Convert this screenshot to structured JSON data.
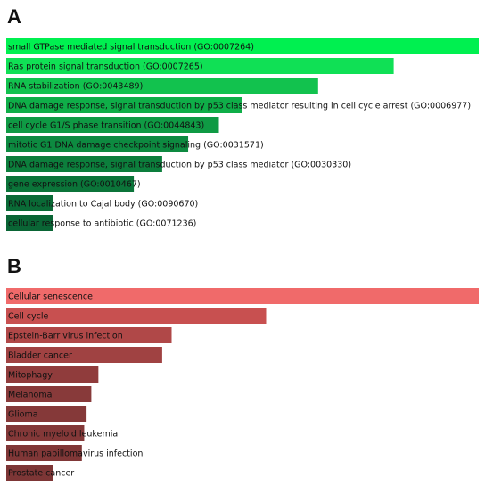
{
  "chart_data": [
    {
      "type": "bar",
      "title": "A",
      "categories": [
        "small GTPase mediated signal transduction (GO:0007264)",
        "Ras protein signal transduction (GO:0007265)",
        "RNA stabilization (GO:0043489)",
        "DNA damage response, signal transduction by p53 class mediator resulting in cell cycle arrest (GO:0006977)",
        "cell cycle G1/S phase transition (GO:0044843)",
        "mitotic G1 DNA damage checkpoint signaling (GO:0031571)",
        "DNA damage response, signal transduction by p53 class mediator (GO:0030330)",
        "gene expression (GO:0010467)",
        "RNA localization to Cajal body (GO:0090670)",
        "cellular response to antibiotic (GO:0071236)"
      ],
      "values": [
        100,
        82,
        66,
        50,
        45,
        38.5,
        33,
        27,
        10,
        10
      ],
      "colors": [
        "#00f050",
        "#10e055",
        "#12c24e",
        "#0fae48",
        "#0f9a44",
        "#0d8a40",
        "#0c7e3c",
        "#0b7439",
        "#0a6a36",
        "#0a6535"
      ],
      "xlim": [
        0,
        100
      ]
    },
    {
      "type": "bar",
      "title": "B",
      "categories": [
        "Cellular senescence",
        "Cell cycle",
        "Epstein-Barr virus infection",
        "Bladder cancer",
        "Mitophagy",
        "Melanoma",
        "Glioma",
        "Chronic myeloid leukemia",
        "Human papillomavirus infection",
        "Prostate cancer"
      ],
      "values": [
        100,
        55,
        35,
        33,
        19.5,
        18,
        17,
        16.5,
        16,
        10
      ],
      "colors": [
        "#f06a6a",
        "#c85050",
        "#b04848",
        "#a04242",
        "#903c3c",
        "#883a3a",
        "#853939",
        "#833838",
        "#803737",
        "#7d3636"
      ],
      "xlim": [
        0,
        100
      ]
    }
  ]
}
